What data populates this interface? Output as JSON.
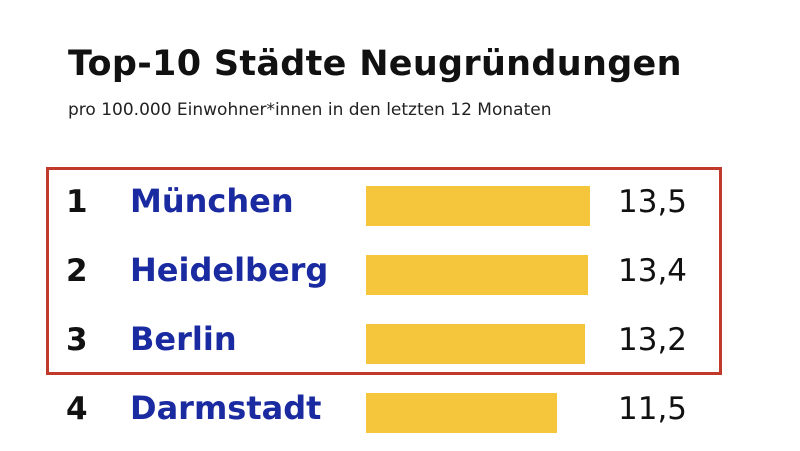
{
  "chart": {
    "title": "Top-10 Städte Neugründungen",
    "subtitle": "pro 100.000 Einwohner*innen in den letzten 12 Monaten"
  },
  "colors": {
    "bar": "#f5c63c",
    "city_text": "#1a2aa0",
    "highlight_border": "#c0392b"
  },
  "chart_data": {
    "type": "bar",
    "orientation": "horizontal",
    "title": "Top-10 Städte Neugründungen",
    "subtitle": "pro 100.000 Einwohner*innen in den letzten 12 Monaten",
    "xlim": [
      0,
      13.5
    ],
    "grid": false,
    "rows": [
      {
        "rank": "1",
        "city": "München",
        "value": 13.5,
        "label": "13,5"
      },
      {
        "rank": "2",
        "city": "Heidelberg",
        "value": 13.4,
        "label": "13,4"
      },
      {
        "rank": "3",
        "city": "Berlin",
        "value": 13.2,
        "label": "13,2"
      },
      {
        "rank": "4",
        "city": "Darmstadt",
        "value": 11.5,
        "label": "11,5"
      }
    ],
    "highlighted_ranks": [
      "1",
      "2",
      "3"
    ]
  }
}
